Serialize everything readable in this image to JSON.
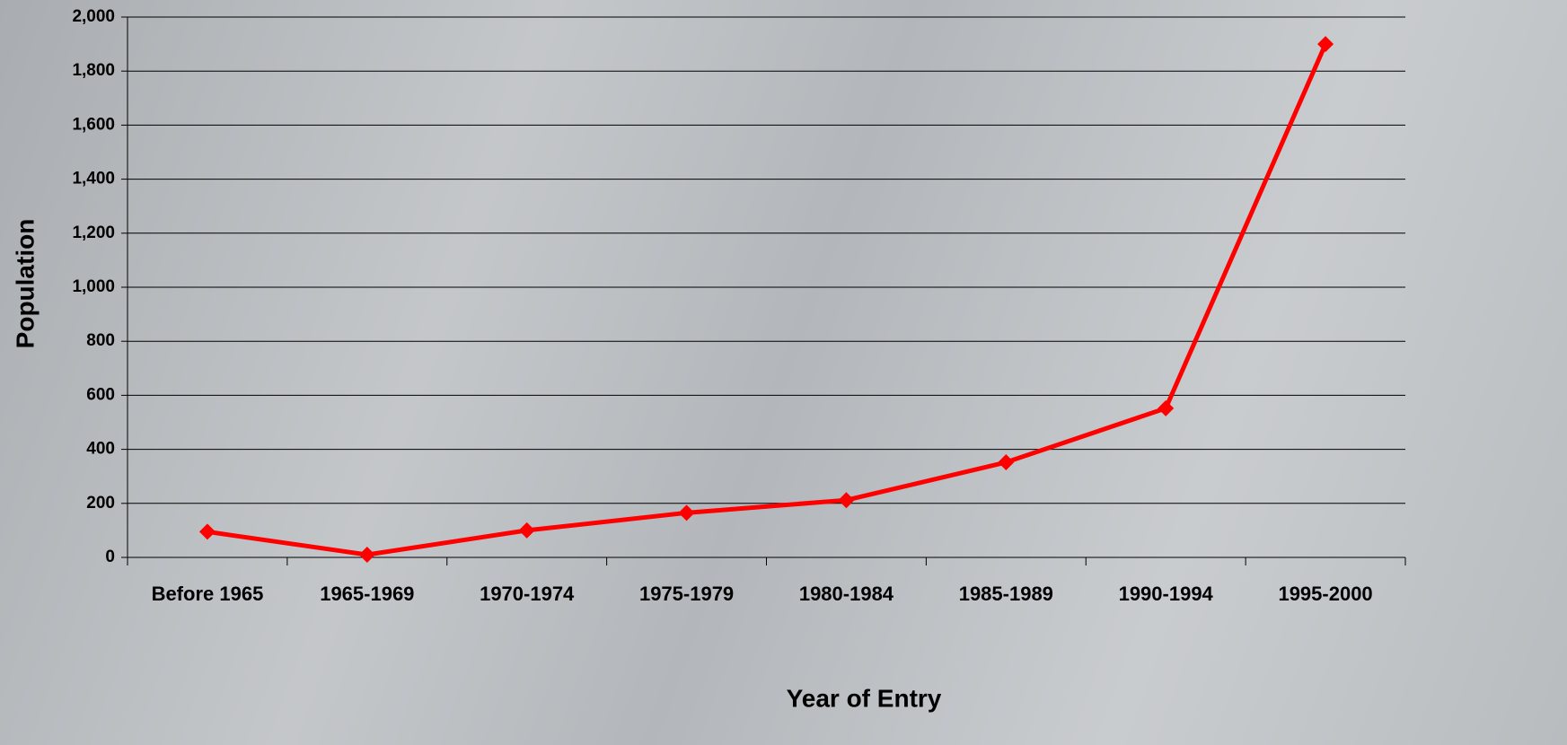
{
  "chart_data": {
    "type": "line",
    "x_label": "Year of Entry",
    "y_label": "Population",
    "categories": [
      "Before 1965",
      "1965-1969",
      "1970-1974",
      "1975-1979",
      "1980-1984",
      "1985-1989",
      "1990-1994",
      "1995-2000"
    ],
    "values": [
      95,
      10,
      100,
      165,
      212,
      352,
      552,
      1900
    ],
    "color": "#ff0000",
    "ylim": [
      0,
      2000
    ],
    "yticks": [
      0,
      200,
      400,
      600,
      800,
      {
        "value": 1000,
        "label": "1,000"
      },
      {
        "value": 1200,
        "label": "1,200"
      },
      {
        "value": 1400,
        "label": "1,400"
      },
      {
        "value": 1600,
        "label": "1,600"
      },
      {
        "value": 1800,
        "label": "1,800"
      },
      {
        "value": 2000,
        "label": "2,000"
      }
    ],
    "grid": true
  }
}
